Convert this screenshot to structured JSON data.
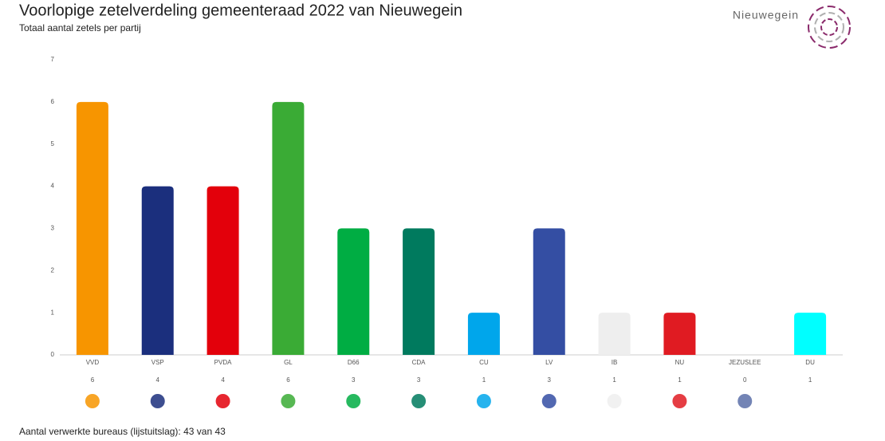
{
  "brand": "Nieuwegein",
  "chart_data": {
    "type": "bar",
    "title": "Voorlopige zetelverdeling gemeenteraad 2022 van Nieuwegein",
    "subtitle": "Totaal aantal zetels per partij",
    "categories": [
      "VVD",
      "VSP",
      "PVDA",
      "GL",
      "D66",
      "CDA",
      "CU",
      "LV",
      "IB",
      "NU",
      "JEZUSLEE",
      "DU"
    ],
    "values": [
      6,
      4,
      4,
      6,
      3,
      3,
      1,
      3,
      1,
      1,
      0,
      1
    ],
    "colors": [
      "#f79500",
      "#1b2f7d",
      "#e3000b",
      "#3aab35",
      "#00ad43",
      "#007a5e",
      "#00a6eb",
      "#344ea3",
      "#eeeeee",
      "#e01b22",
      "#5b6fa8",
      "#00ffff"
    ],
    "ylim": [
      0,
      7
    ],
    "yticks": [
      0,
      1,
      2,
      3,
      4,
      5,
      6,
      7
    ],
    "grid": false,
    "footnote": "Aantal verwerkte bureaus (lijstuitslag): 43 van 43"
  }
}
